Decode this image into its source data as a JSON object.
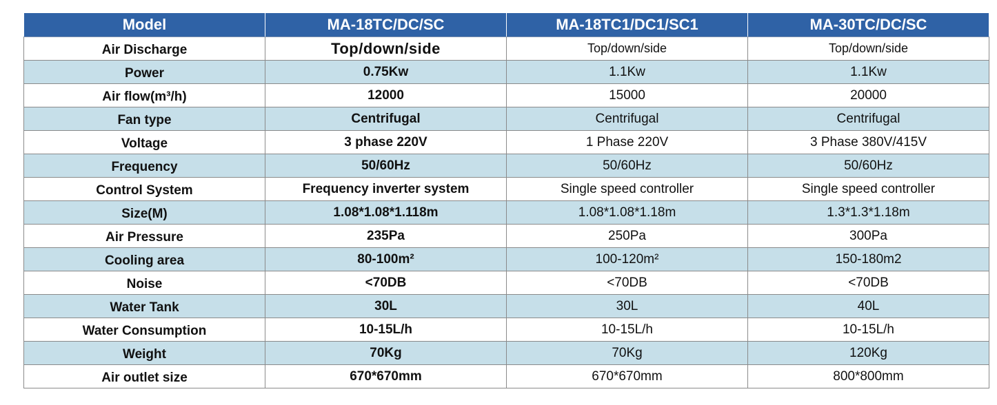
{
  "colors": {
    "header_bg": "#2f62a6",
    "header_text": "#ffffff",
    "row_alt_bg": "#c6dfe9",
    "row_bg": "#ffffff",
    "border": "#8a8a8a"
  },
  "table": {
    "headers": [
      "Model",
      "MA-18TC/DC/SC",
      "MA-18TC1/DC1/SC1",
      "MA-30TC/DC/SC"
    ],
    "rows": [
      [
        "Air Discharge",
        "Top/down/side",
        "Top/down/side",
        "Top/down/side"
      ],
      [
        "Power",
        "0.75Kw",
        "1.1Kw",
        "1.1Kw"
      ],
      [
        "Air flow(m³/h)",
        "12000",
        "15000",
        "20000"
      ],
      [
        "Fan type",
        "Centrifugal",
        "Centrifugal",
        "Centrifugal"
      ],
      [
        "Voltage",
        "3 phase 220V",
        "1 Phase 220V",
        "3 Phase 380V/415V"
      ],
      [
        "Frequency",
        "50/60Hz",
        "50/60Hz",
        "50/60Hz"
      ],
      [
        "Control System",
        "Frequency inverter system",
        "Single speed controller",
        "Single speed controller"
      ],
      [
        "Size(M)",
        "1.08*1.08*1.118m",
        "1.08*1.08*1.18m",
        "1.3*1.3*1.18m"
      ],
      [
        "Air Pressure",
        "235Pa",
        "250Pa",
        "300Pa"
      ],
      [
        "Cooling area",
        "80-100m²",
        "100-120m²",
        "150-180m2"
      ],
      [
        "Noise",
        "<70DB",
        "<70DB",
        "<70DB"
      ],
      [
        "Water Tank",
        "30L",
        "30L",
        "40L"
      ],
      [
        "Water Consumption",
        "10-15L/h",
        "10-15L/h",
        "10-15L/h"
      ],
      [
        "Weight",
        "70Kg",
        "70Kg",
        "120Kg"
      ],
      [
        "Air outlet size",
        "670*670mm",
        "670*670mm",
        "800*800mm"
      ]
    ]
  }
}
